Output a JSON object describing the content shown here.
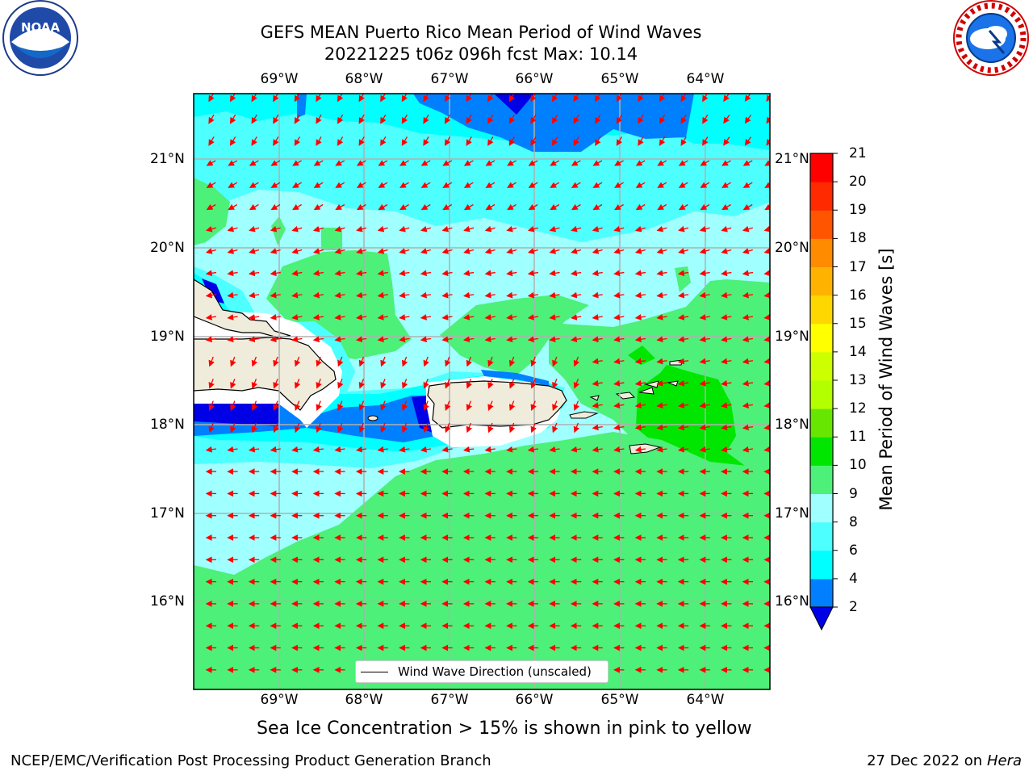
{
  "header": {
    "title_line1": "GEFS MEAN Puerto Rico Mean Period of Wind Waves",
    "title_line2": "20221225 t06z 096h fcst   Max: 10.14"
  },
  "logos": {
    "left": "noaa-logo",
    "right": "national-weather-service-logo"
  },
  "map": {
    "longitude_labels": [
      "69°W",
      "68°W",
      "67°W",
      "66°W",
      "65°W",
      "64°W"
    ],
    "latitude_labels": [
      "21°N",
      "20°N",
      "19°N",
      "18°N",
      "17°N",
      "16°N"
    ],
    "land_color": "#f0ecdc",
    "arrow_color": "#ff0000",
    "grid": true,
    "legend_label": "Wind Wave Direction (unscaled)"
  },
  "colorbar": {
    "label": "Mean Period of Wind Waves [s]",
    "ticks": [
      "2",
      "4",
      "6",
      "8",
      "9",
      "10",
      "11",
      "12",
      "13",
      "14",
      "15",
      "16",
      "17",
      "18",
      "19",
      "20",
      "21"
    ],
    "colors": [
      "#0000e6",
      "#0080ff",
      "#00ffff",
      "#4dffff",
      "#a0ffff",
      "#4df078",
      "#00e600",
      "#66e600",
      "#b3ff00",
      "#ccff00",
      "#ffff00",
      "#ffd700",
      "#ffb300",
      "#ff8c00",
      "#ff5500",
      "#ff2a00",
      "#ff0000"
    ],
    "extend_min_color": "#0000e6"
  },
  "footer": {
    "sea_ice_note": "Sea Ice Concentration > 15% is shown in pink to yellow",
    "branch": "NCEP/EMC/Verification Post Processing Product Generation Branch",
    "date": "27 Dec 2022 on",
    "host": "Hera"
  }
}
